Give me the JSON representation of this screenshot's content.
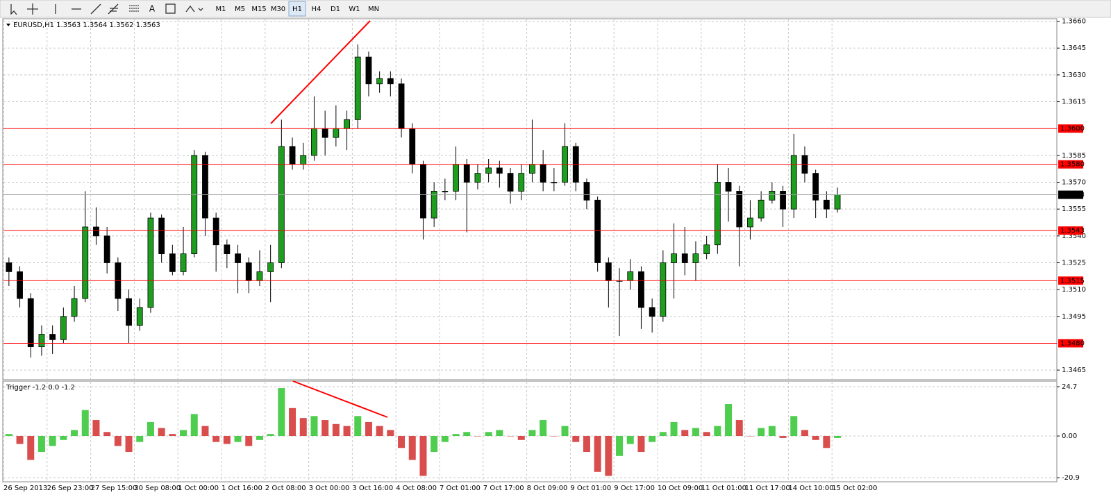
{
  "toolbar": {
    "text_tool": "A",
    "timeframes": [
      "M1",
      "M5",
      "M15",
      "M30",
      "H1",
      "H4",
      "D1",
      "W1",
      "MN"
    ]
  },
  "chart_data": [
    {
      "type": "candlestick",
      "title": "EURUSD,H1  1.3563 1.3564 1.3562 1.3563",
      "categories": [
        "26 Sep 2013",
        null,
        null,
        null,
        "26 Sep 23:00",
        null,
        null,
        null,
        "27 Sep 15:00",
        null,
        null,
        null,
        "30 Sep 08:00",
        null,
        null,
        null,
        "1 Oct 00:00",
        null,
        null,
        null,
        "1 Oct 16:00",
        null,
        null,
        null,
        "2 Oct 08:00",
        null,
        null,
        null,
        "3 Oct 00:00",
        null,
        null,
        null,
        "3 Oct 16:00",
        null,
        null,
        null,
        "4 Oct 08:00",
        null,
        null,
        null,
        "7 Oct 01:00",
        null,
        null,
        null,
        "7 Oct 17:00",
        null,
        null,
        null,
        "8 Oct 09:00",
        null,
        null,
        null,
        "9 Oct 01:00",
        null,
        null,
        null,
        "9 Oct 17:00",
        null,
        null,
        null,
        "10 Oct 09:00",
        null,
        null,
        null,
        "11 Oct 01:00",
        null,
        null,
        null,
        "11 Oct 17:00",
        null,
        null,
        null,
        "14 Oct 10:00",
        null,
        null,
        null,
        "15 Oct 02:00"
      ],
      "open": [
        1.3525,
        1.352,
        1.3505,
        1.3478,
        1.3485,
        1.3482,
        1.3495,
        1.3505,
        1.3545,
        1.354,
        1.3525,
        1.3505,
        1.349,
        1.35,
        1.355,
        1.353,
        1.352,
        1.353,
        1.3585,
        1.355,
        1.3535,
        1.353,
        1.3525,
        1.3515,
        1.352,
        1.3525,
        1.359,
        1.358,
        1.3585,
        1.36,
        1.3595,
        1.36,
        1.3605,
        1.364,
        1.3625,
        1.3628,
        1.3625,
        1.36,
        1.358,
        1.355,
        1.3565,
        1.3565,
        1.358,
        1.357,
        1.3575,
        1.3578,
        1.3575,
        1.3565,
        1.3575,
        1.358,
        1.357,
        1.357,
        1.359,
        1.357,
        1.356,
        1.3525,
        1.3515,
        1.3515,
        1.352,
        1.35,
        1.3495,
        1.3525,
        1.353,
        1.3525,
        1.353,
        1.3535,
        1.357,
        1.3565,
        1.3545,
        1.355,
        1.356,
        1.3565,
        1.3555,
        1.3585,
        1.3575,
        1.356,
        1.3555
      ],
      "high": [
        1.3528,
        1.3523,
        1.3508,
        1.349,
        1.349,
        1.35,
        1.3512,
        1.3565,
        1.3556,
        1.3545,
        1.3528,
        1.351,
        1.3505,
        1.3553,
        1.3552,
        1.3535,
        1.3545,
        1.3588,
        1.3587,
        1.3553,
        1.3538,
        1.3535,
        1.3528,
        1.3532,
        1.3535,
        1.3605,
        1.3595,
        1.3592,
        1.3618,
        1.361,
        1.3613,
        1.361,
        1.3647,
        1.3643,
        1.3632,
        1.3632,
        1.3628,
        1.3603,
        1.3582,
        1.357,
        1.3572,
        1.359,
        1.3583,
        1.358,
        1.3583,
        1.3582,
        1.3578,
        1.358,
        1.3605,
        1.3588,
        1.3578,
        1.3603,
        1.3592,
        1.3572,
        1.3562,
        1.3528,
        1.3522,
        1.3527,
        1.3523,
        1.3505,
        1.3532,
        1.3547,
        1.3545,
        1.3537,
        1.354,
        1.358,
        1.3578,
        1.3568,
        1.356,
        1.3565,
        1.357,
        1.3568,
        1.3597,
        1.359,
        1.3577,
        1.3565,
        1.3567
      ],
      "low": [
        1.3512,
        1.35,
        1.3472,
        1.3473,
        1.3474,
        1.348,
        1.3492,
        1.3503,
        1.3535,
        1.3519,
        1.3498,
        1.348,
        1.3487,
        1.3497,
        1.3525,
        1.3518,
        1.3518,
        1.3528,
        1.354,
        1.352,
        1.3522,
        1.3508,
        1.3508,
        1.3512,
        1.3503,
        1.3522,
        1.3577,
        1.3577,
        1.3582,
        1.3585,
        1.359,
        1.3588,
        1.36,
        1.3618,
        1.362,
        1.3618,
        1.3595,
        1.3575,
        1.3538,
        1.3545,
        1.356,
        1.356,
        1.3542,
        1.3566,
        1.357,
        1.3567,
        1.3558,
        1.356,
        1.357,
        1.3565,
        1.3565,
        1.3568,
        1.3565,
        1.3555,
        1.352,
        1.35,
        1.3484,
        1.351,
        1.3488,
        1.3486,
        1.3492,
        1.3505,
        1.3518,
        1.3515,
        1.3527,
        1.353,
        1.3548,
        1.3523,
        1.3538,
        1.3548,
        1.3558,
        1.3545,
        1.355,
        1.357,
        1.355,
        1.355,
        1.3553
      ],
      "close": [
        1.352,
        1.3505,
        1.3478,
        1.3485,
        1.3482,
        1.3495,
        1.3505,
        1.3545,
        1.354,
        1.3525,
        1.3505,
        1.349,
        1.35,
        1.355,
        1.353,
        1.352,
        1.353,
        1.3585,
        1.355,
        1.3535,
        1.353,
        1.3525,
        1.3515,
        1.352,
        1.3525,
        1.359,
        1.358,
        1.3585,
        1.36,
        1.3595,
        1.36,
        1.3605,
        1.364,
        1.3625,
        1.3628,
        1.3625,
        1.36,
        1.358,
        1.355,
        1.3565,
        1.3565,
        1.358,
        1.357,
        1.3575,
        1.3578,
        1.3575,
        1.3565,
        1.3575,
        1.358,
        1.357,
        1.357,
        1.359,
        1.357,
        1.356,
        1.3525,
        1.3515,
        1.3515,
        1.352,
        1.35,
        1.3495,
        1.3525,
        1.353,
        1.3525,
        1.353,
        1.3535,
        1.357,
        1.3565,
        1.3545,
        1.355,
        1.356,
        1.3565,
        1.3555,
        1.3585,
        1.3575,
        1.356,
        1.3555,
        1.3563
      ],
      "bull_color": "#1e9e1e",
      "bear_color": "#000000",
      "ylim": [
        1.346,
        1.3661
      ],
      "yticks": [
        {
          "value": 1.366,
          "label": "1.3660"
        },
        {
          "value": 1.3645,
          "label": "1.3645"
        },
        {
          "value": 1.363,
          "label": "1.3630"
        },
        {
          "value": 1.3615,
          "label": "1.3615"
        },
        {
          "value": 1.3585,
          "label": "1.3585"
        },
        {
          "value": 1.357,
          "label": "1.3570"
        },
        {
          "value": 1.3555,
          "label": "1.3555"
        },
        {
          "value": 1.354,
          "label": "1.3540"
        },
        {
          "value": 1.3525,
          "label": "1.3525"
        },
        {
          "value": 1.351,
          "label": "1.3510"
        },
        {
          "value": 1.3495,
          "label": "1.3495"
        },
        {
          "value": 1.3465,
          "label": "1.3465"
        }
      ],
      "grid": true,
      "levels": [
        {
          "value": 1.36,
          "label": "1.3600"
        },
        {
          "value": 1.358,
          "label": "1.3580"
        },
        {
          "value": 1.3543,
          "label": "1.3543"
        },
        {
          "value": 1.3515,
          "label": "1.3515"
        },
        {
          "value": 1.348,
          "label": "1.3480"
        }
      ],
      "level_color": "#ff0000",
      "current": {
        "value": 1.3563,
        "label": "1.3563"
      }
    },
    {
      "type": "histogram",
      "title": "Trigger -1.2 0.0 -1.2",
      "values": [
        1,
        -4,
        -12,
        -8,
        -5,
        -2,
        3,
        13,
        8,
        2,
        -5,
        -8,
        -3,
        7,
        4,
        1,
        3,
        11,
        5,
        -3,
        -4,
        -3,
        -5,
        -2,
        1,
        24,
        14,
        9,
        10,
        8,
        6,
        5,
        10,
        7,
        5,
        3,
        -6,
        -12,
        -20,
        -8,
        -3,
        1,
        2,
        0,
        2,
        3,
        0,
        -2,
        3,
        8,
        0,
        5,
        -3,
        -8,
        -18,
        -20,
        -10,
        -4,
        -8,
        -3,
        2,
        7,
        3,
        4,
        2,
        5,
        16,
        8,
        0,
        4,
        5,
        -1,
        10,
        3,
        -2,
        -6,
        -1
      ],
      "up_color": "#22c022",
      "down_color": "#d02020",
      "ylim": [
        -22.6,
        27.5
      ],
      "yticks": [
        24.7,
        {
          "value": 0,
          "label": "0.00"
        },
        -20.9
      ]
    }
  ]
}
